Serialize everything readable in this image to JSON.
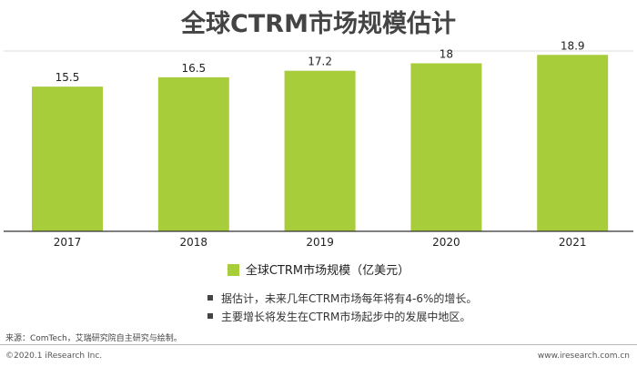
{
  "header": {
    "title": "全球CTRM市场规模估计"
  },
  "chart_data": {
    "type": "bar",
    "title": "全球CTRM市场规模估计",
    "categories": [
      "2017",
      "2018",
      "2019",
      "2020",
      "2021"
    ],
    "series": [
      {
        "name": "全球CTRM市场规模（亿美元）",
        "values": [
          15.5,
          16.5,
          17.2,
          18,
          18.9
        ]
      }
    ],
    "value_labels": [
      "15.5",
      "16.5",
      "17.2",
      "18",
      "18.9"
    ],
    "ylim": [
      0,
      20
    ],
    "grid": false,
    "legend": "bottom",
    "color": "#a8cd3a"
  },
  "legend": {
    "label": "全球CTRM市场规模（亿美元）"
  },
  "notes": [
    "据估计，未来几年CTRM市场每年将有4-6%的增长。",
    "主要增长将发生在CTRM市场起步中的发展中地区。"
  ],
  "footer": {
    "source": "来源：ComTech，艾瑞研究院自主研究与绘制。",
    "copyright": "©2020.1 iResearch Inc.",
    "website": "www.iresearch.com.cn"
  }
}
